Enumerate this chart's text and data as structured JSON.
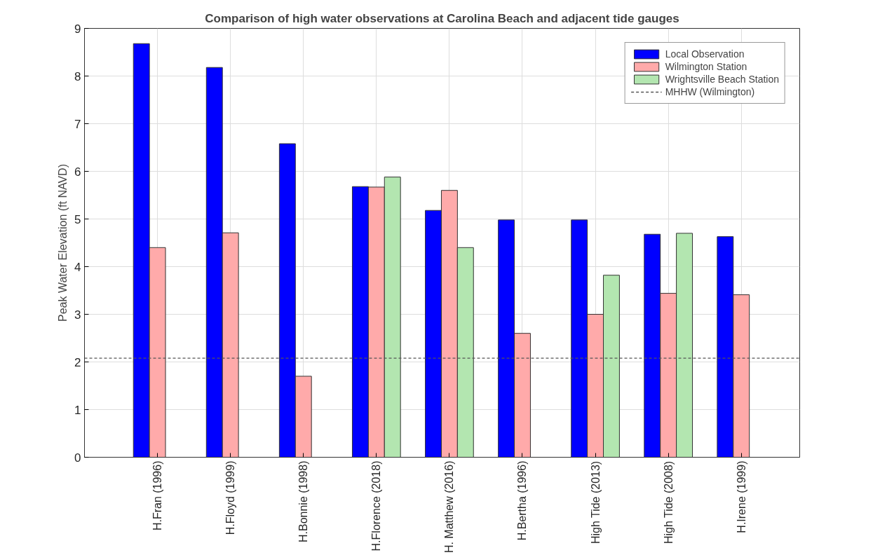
{
  "chart_data": {
    "type": "bar",
    "title": "Comparison of high water observations at Carolina Beach and adjacent tide gauges",
    "ylabel": "Peak Water Elevation (ft NAVD)",
    "categories": [
      "H.Fran (1996)",
      "H.Floyd (1999)",
      "H.Bonnie (1998)",
      "H.Florence (2018)",
      "H. Matthew (2016)",
      "H.Bertha (1996)",
      "High Tide (2013)",
      "High Tide (2008)",
      "H.Irene (1999)"
    ],
    "series": [
      {
        "name": "Local Observation",
        "color": "#0000ff",
        "values": [
          8.68,
          8.18,
          6.58,
          5.68,
          5.18,
          4.98,
          4.98,
          4.68,
          4.63
        ]
      },
      {
        "name": "Wilmington Station",
        "color": "#ffaaaa",
        "values": [
          4.4,
          4.71,
          1.7,
          5.67,
          5.6,
          2.6,
          3.0,
          3.44,
          3.41
        ]
      },
      {
        "name": "Wrightsville Beach Station",
        "color": "#b3e6b0",
        "values": [
          null,
          null,
          null,
          5.88,
          4.4,
          null,
          3.82,
          4.7,
          null
        ]
      }
    ],
    "ylim": [
      0,
      9
    ],
    "yticks": [
      0,
      1,
      2,
      3,
      4,
      5,
      6,
      7,
      8,
      9
    ],
    "grid": true,
    "legend": "top right",
    "ref_lines": [
      {
        "axis": "y",
        "value": 2.08,
        "label": "MHHW (Wilmington)",
        "color": "#555555",
        "line_style": "dashed"
      }
    ]
  }
}
